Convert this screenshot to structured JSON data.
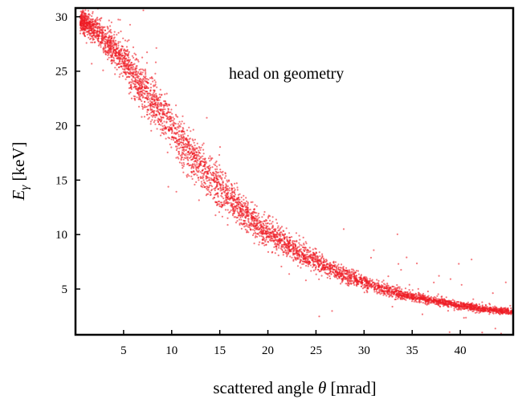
{
  "chart_data": {
    "type": "scatter",
    "title": "",
    "annotation": "head on geometry",
    "xlabel": {
      "text": "scattered angle",
      "symbol": "θ",
      "unit": "[mrad]"
    },
    "ylabel": {
      "main": "E",
      "subscript": "γ",
      "unit": " [keV]"
    },
    "xlim": [
      0,
      45.5
    ],
    "ylim": [
      0.8,
      30.8
    ],
    "xticks": [
      5,
      10,
      15,
      20,
      25,
      30,
      35,
      40
    ],
    "yticks": [
      5,
      10,
      15,
      20,
      25,
      30
    ],
    "grid": false,
    "legend": "none",
    "marker_color": "#ee1c25",
    "series": [
      {
        "x": [
          0.5,
          2,
          4,
          6,
          8,
          10,
          12,
          14,
          16,
          18,
          20,
          22,
          24,
          26,
          28,
          30,
          32,
          34,
          36,
          38,
          40,
          42,
          44,
          45.5
        ],
        "y": [
          29.6,
          28.9,
          27.0,
          24.8,
          22.3,
          19.8,
          17.4,
          15.2,
          13.3,
          11.6,
          10.2,
          9.0,
          8.0,
          7.1,
          6.3,
          5.6,
          5.0,
          4.5,
          4.1,
          3.8,
          3.5,
          3.2,
          3.0,
          2.9
        ],
        "spread": [
          0.45,
          0.6,
          0.8,
          1.0,
          1.05,
          1.05,
          1.0,
          0.95,
          0.85,
          0.75,
          0.65,
          0.55,
          0.48,
          0.42,
          0.36,
          0.31,
          0.27,
          0.24,
          0.21,
          0.19,
          0.17,
          0.15,
          0.14,
          0.13
        ]
      }
    ]
  }
}
